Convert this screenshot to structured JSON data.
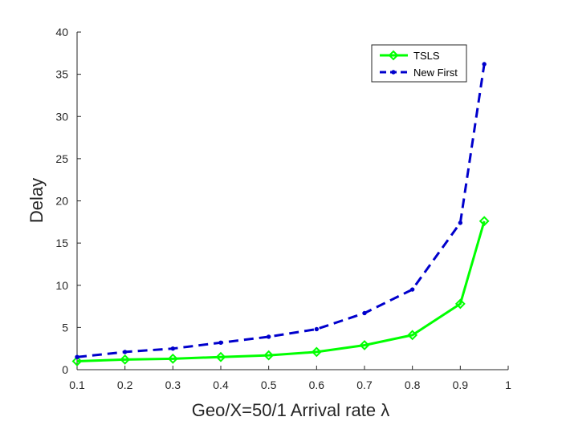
{
  "chart_data": {
    "type": "line",
    "xlabel": "Geo/X=50/1 Arrival rate λ",
    "ylabel": "Delay",
    "xlim": [
      0.1,
      1
    ],
    "ylim": [
      0,
      40
    ],
    "xticks": [
      "0.1",
      "0.2",
      "0.3",
      "0.4",
      "0.5",
      "0.6",
      "0.7",
      "0.8",
      "0.9",
      "1"
    ],
    "yticks": [
      "0",
      "5",
      "10",
      "15",
      "20",
      "25",
      "30",
      "35",
      "40"
    ],
    "grid": false,
    "legend_position": "top-right",
    "x": [
      0.1,
      0.2,
      0.3,
      0.4,
      0.5,
      0.6,
      0.7,
      0.8,
      0.9,
      0.95
    ],
    "series": [
      {
        "name": "TSLS",
        "color": "#00ff00",
        "style": "solid",
        "marker": "diamond",
        "values": [
          1.0,
          1.2,
          1.3,
          1.5,
          1.7,
          2.1,
          2.9,
          4.1,
          7.8,
          17.6
        ]
      },
      {
        "name": "New First",
        "color": "#0000cc",
        "style": "dashed",
        "marker": "dot",
        "values": [
          1.5,
          2.1,
          2.5,
          3.2,
          3.9,
          4.8,
          6.7,
          9.5,
          17.4,
          36.2
        ]
      }
    ]
  }
}
